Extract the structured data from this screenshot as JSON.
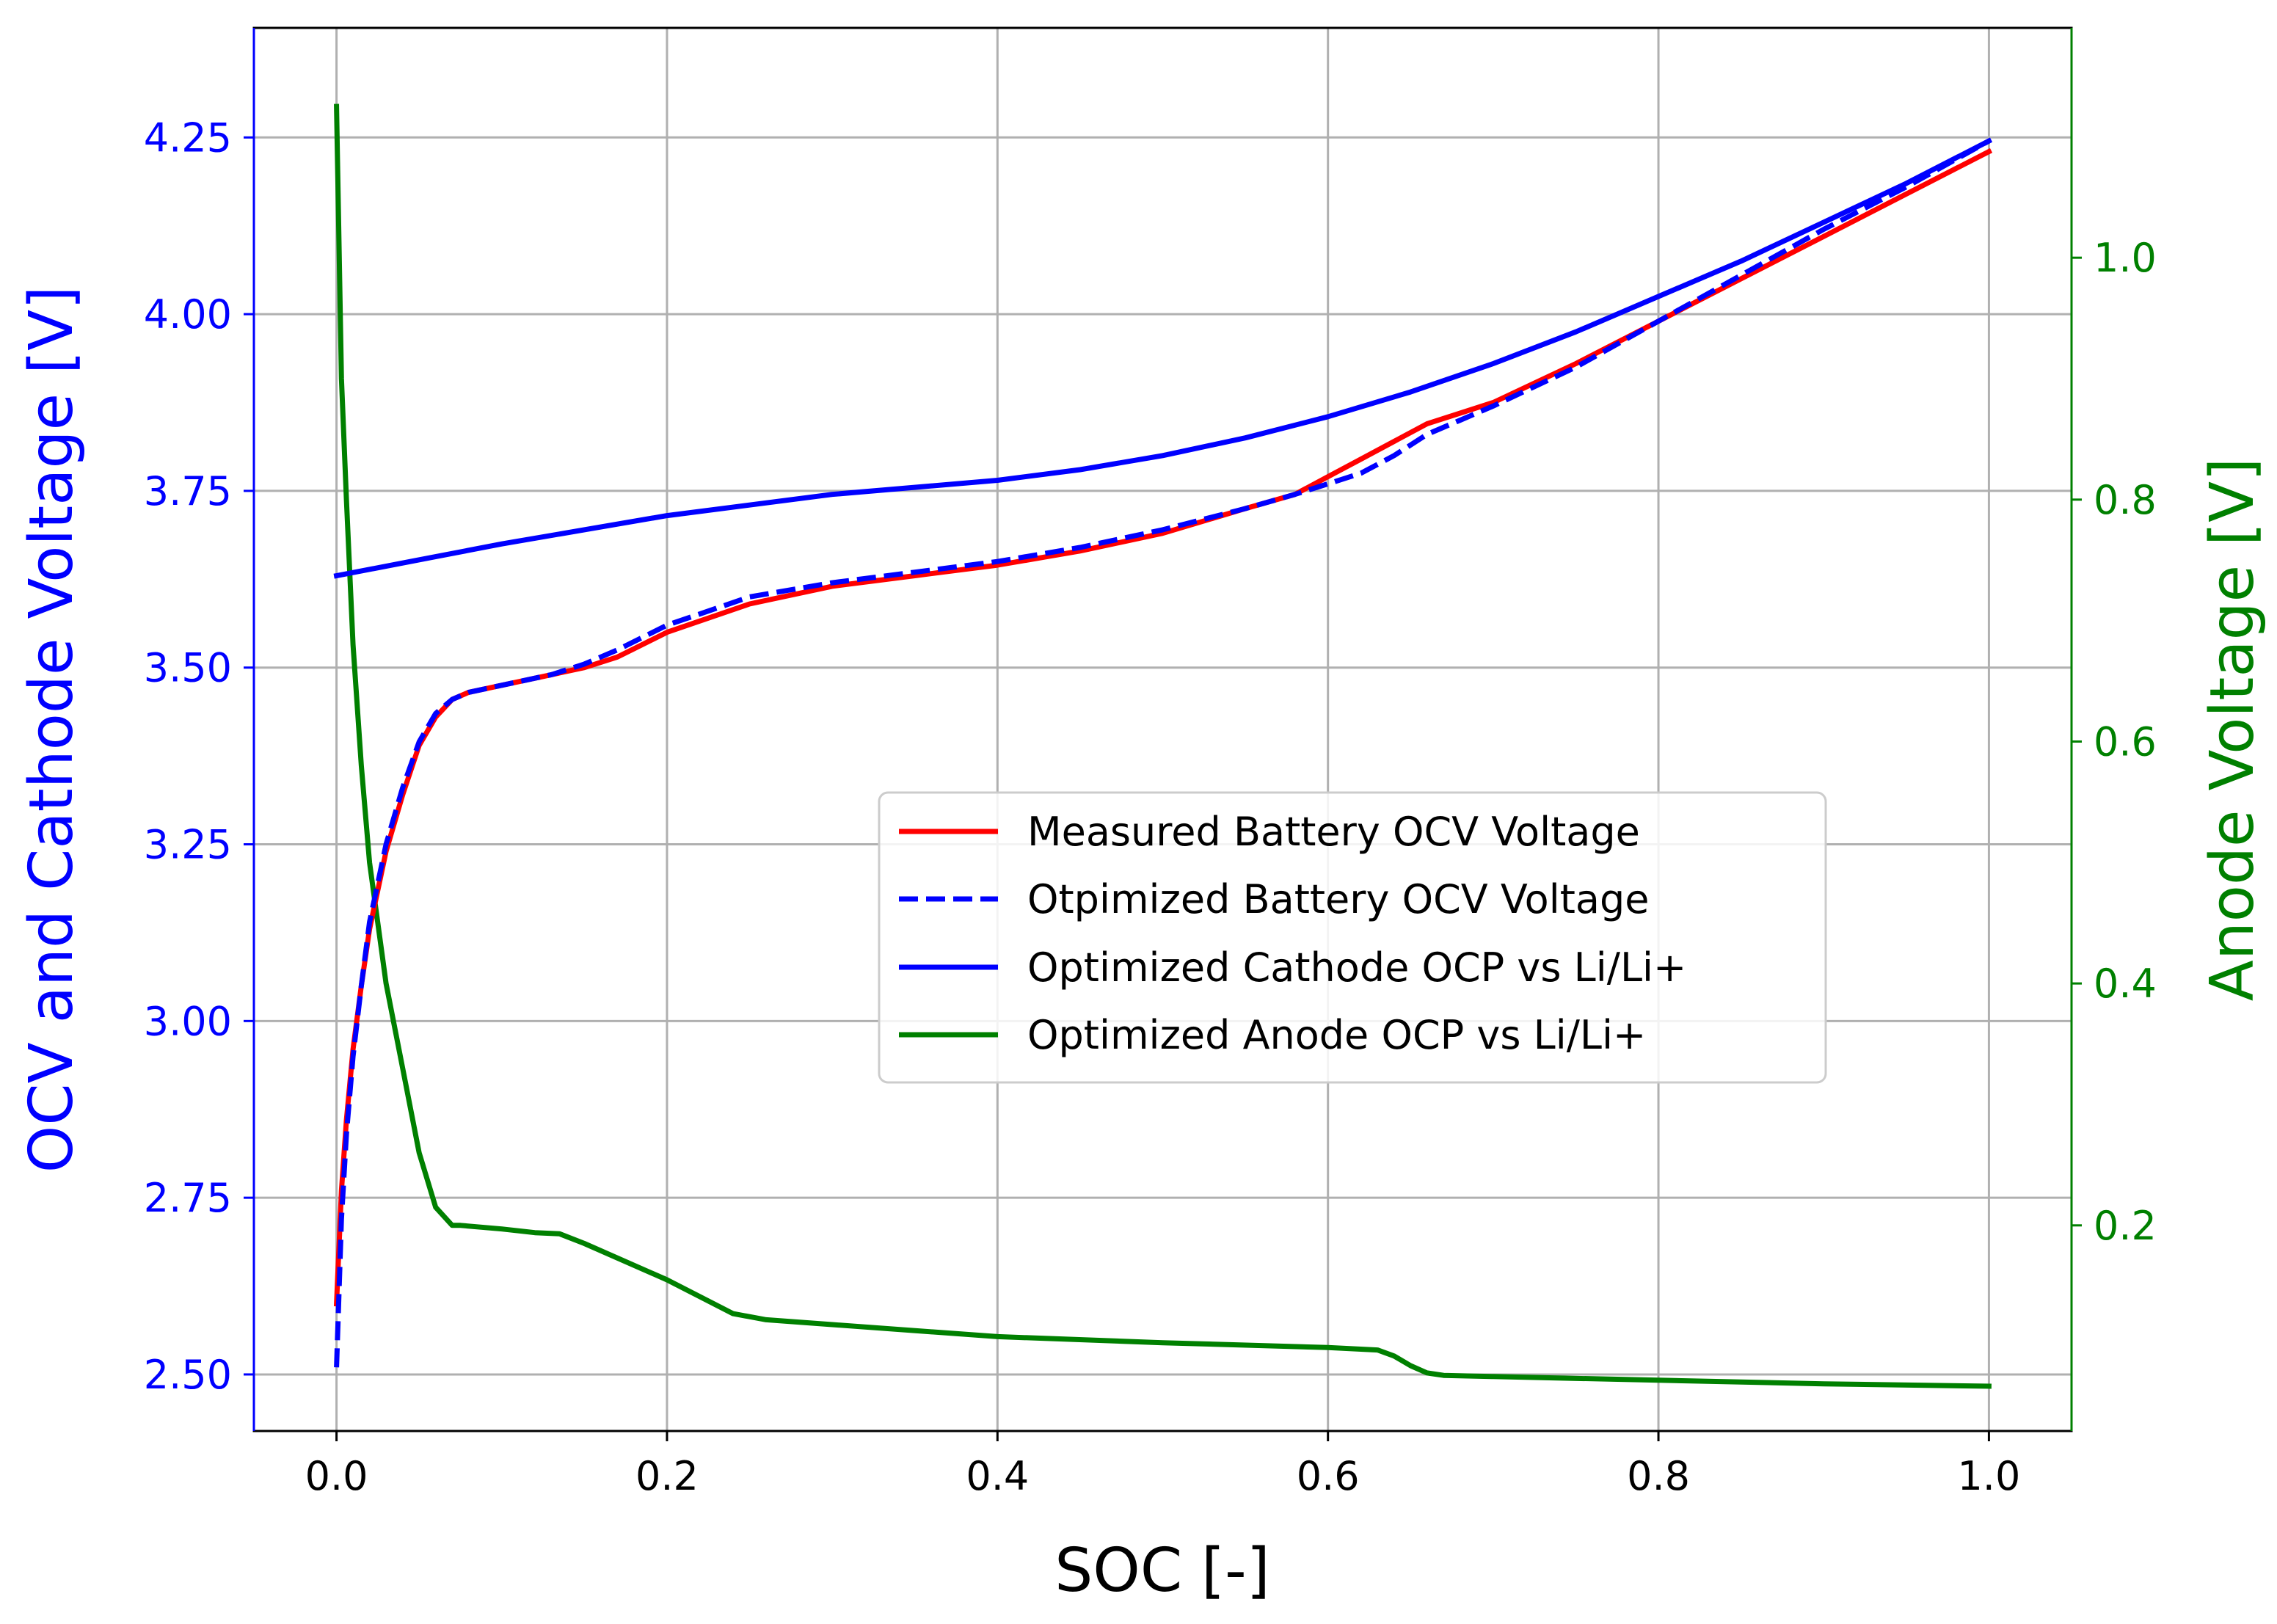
{
  "chart_data": {
    "type": "line",
    "x_label": "SOC [-]",
    "y_label_left": "OCV and Cathode Voltage [V]",
    "y_label_right": "Anode Voltage [V]",
    "xlim": [
      -0.05,
      1.05
    ],
    "ylim_left": [
      2.42,
      4.405
    ],
    "ylim_right": [
      0.03,
      1.19
    ],
    "x_ticks": [
      0.0,
      0.2,
      0.4,
      0.6,
      0.8,
      1.0
    ],
    "x_tick_labels": [
      "0.0",
      "0.2",
      "0.4",
      "0.6",
      "0.8",
      "1.0"
    ],
    "y_left_ticks": [
      2.5,
      2.75,
      3.0,
      3.25,
      3.5,
      3.75,
      4.0,
      4.25
    ],
    "y_left_tick_labels": [
      "2.50",
      "2.75",
      "3.00",
      "3.25",
      "3.50",
      "3.75",
      "4.00",
      "4.25"
    ],
    "y_right_ticks": [
      0.2,
      0.4,
      0.6,
      0.8,
      1.0
    ],
    "y_right_tick_labels": [
      "0.2",
      "0.4",
      "0.6",
      "0.8",
      "1.0"
    ],
    "grid": true,
    "legend_position": "center-right",
    "colors": {
      "left_axis": "#0000ff",
      "right_axis": "#008000",
      "grid": "#b0b0b0"
    },
    "series": [
      {
        "name": "Measured Battery OCV Voltage",
        "axis": "left",
        "color": "#ff0000",
        "dash": "solid",
        "x": [
          0.0,
          0.003,
          0.006,
          0.01,
          0.015,
          0.02,
          0.03,
          0.04,
          0.05,
          0.06,
          0.07,
          0.08,
          0.1,
          0.13,
          0.15,
          0.17,
          0.2,
          0.25,
          0.3,
          0.35,
          0.4,
          0.45,
          0.5,
          0.55,
          0.58,
          0.6,
          0.62,
          0.64,
          0.66,
          0.68,
          0.7,
          0.75,
          0.8,
          0.85,
          0.9,
          0.95,
          1.0
        ],
        "y": [
          2.6,
          2.76,
          2.86,
          2.96,
          3.05,
          3.13,
          3.24,
          3.32,
          3.39,
          3.43,
          3.455,
          3.465,
          3.475,
          3.49,
          3.5,
          3.515,
          3.55,
          3.59,
          3.615,
          3.63,
          3.645,
          3.665,
          3.69,
          3.725,
          3.745,
          3.77,
          3.795,
          3.82,
          3.845,
          3.86,
          3.875,
          3.93,
          3.99,
          4.05,
          4.11,
          4.17,
          4.23
        ]
      },
      {
        "name": "Otpimized Battery OCV Voltage",
        "axis": "left",
        "color": "#0000ff",
        "dash": "dashed",
        "x": [
          0.0,
          0.003,
          0.006,
          0.01,
          0.015,
          0.02,
          0.03,
          0.04,
          0.05,
          0.06,
          0.07,
          0.08,
          0.1,
          0.13,
          0.15,
          0.17,
          0.2,
          0.25,
          0.3,
          0.35,
          0.4,
          0.45,
          0.5,
          0.55,
          0.58,
          0.6,
          0.62,
          0.64,
          0.66,
          0.68,
          0.7,
          0.75,
          0.8,
          0.85,
          0.9,
          0.95,
          1.0
        ],
        "y": [
          2.51,
          2.72,
          2.84,
          2.95,
          3.05,
          3.14,
          3.25,
          3.33,
          3.395,
          3.435,
          3.455,
          3.465,
          3.475,
          3.49,
          3.505,
          3.525,
          3.56,
          3.6,
          3.62,
          3.635,
          3.65,
          3.67,
          3.695,
          3.725,
          3.745,
          3.76,
          3.775,
          3.8,
          3.83,
          3.85,
          3.87,
          3.925,
          3.99,
          4.055,
          4.12,
          4.18,
          4.245
        ]
      },
      {
        "name": "Optimized Cathode OCP vs Li/Li+",
        "axis": "left",
        "color": "#0000ff",
        "dash": "solid",
        "x": [
          0.0,
          0.1,
          0.2,
          0.3,
          0.4,
          0.45,
          0.5,
          0.55,
          0.6,
          0.65,
          0.7,
          0.75,
          0.8,
          0.85,
          0.9,
          0.95,
          1.0
        ],
        "y": [
          3.63,
          3.675,
          3.715,
          3.745,
          3.765,
          3.78,
          3.8,
          3.825,
          3.855,
          3.89,
          3.93,
          3.975,
          4.025,
          4.075,
          4.13,
          4.185,
          4.245
        ]
      },
      {
        "name": "Optimized Anode OCP vs Li/Li+",
        "axis": "right",
        "color": "#008000",
        "dash": "solid",
        "x": [
          0.0,
          0.003,
          0.006,
          0.01,
          0.015,
          0.02,
          0.03,
          0.04,
          0.05,
          0.06,
          0.07,
          0.075,
          0.1,
          0.12,
          0.135,
          0.15,
          0.2,
          0.24,
          0.26,
          0.3,
          0.4,
          0.5,
          0.6,
          0.63,
          0.64,
          0.65,
          0.66,
          0.67,
          0.7,
          0.8,
          0.9,
          1.0
        ],
        "y": [
          1.125,
          0.9,
          0.8,
          0.68,
          0.58,
          0.5,
          0.4,
          0.33,
          0.26,
          0.215,
          0.2,
          0.2,
          0.197,
          0.194,
          0.193,
          0.185,
          0.155,
          0.127,
          0.122,
          0.118,
          0.108,
          0.103,
          0.099,
          0.097,
          0.092,
          0.084,
          0.078,
          0.076,
          0.075,
          0.072,
          0.069,
          0.067
        ]
      }
    ]
  }
}
